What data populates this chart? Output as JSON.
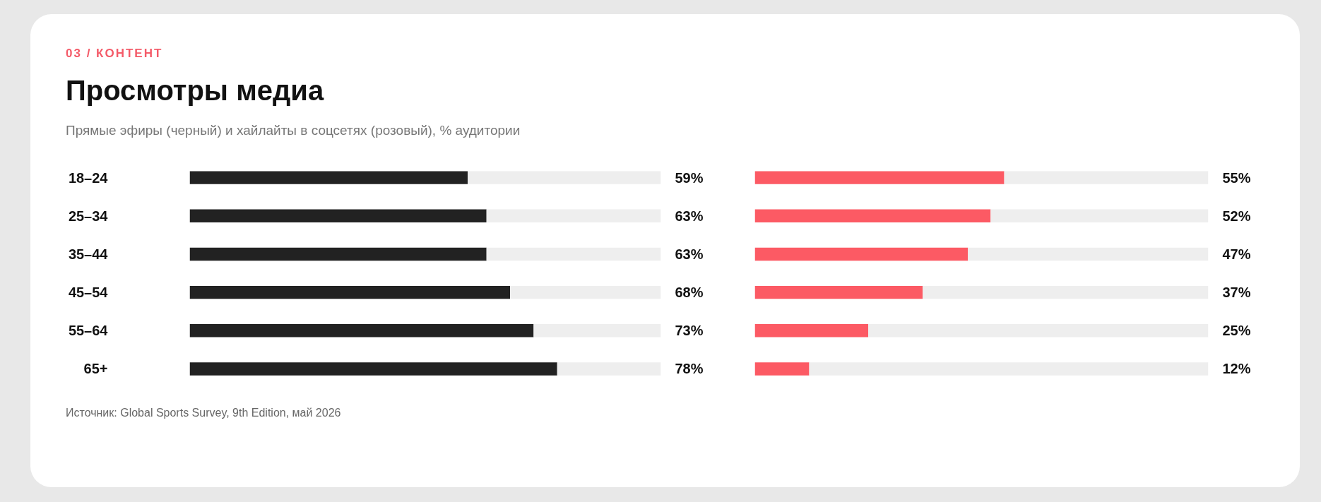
{
  "chart_data": [
    {
      "type": "bar",
      "orientation": "horizontal",
      "stacked": true,
      "title": "Просмотры медиа",
      "subtitle": "Прямые эфиры (черный) и хайлайты в соцсетях (розовый), % аудитории",
      "annotations": [
        "03 / КОНТЕНТ",
        "Источник: Global Sports Survey, 9th Edition, май 2026"
      ],
      "tick_labels": "y",
      "categories": [
        "18–24",
        "25–34",
        "35–44",
        "45–54",
        "55–64",
        "65+"
      ],
      "series": [
        {
          "color": "#222222",
          "values": [
            59,
            63,
            63,
            68,
            73,
            78
          ],
          "value_labels": [
            "59%",
            "63%",
            "63%",
            "68%",
            "73%",
            "78%"
          ]
        },
        {
          "color": "#eeeeee",
          "values": [
            41,
            37,
            37,
            32,
            27,
            22
          ]
        }
      ]
    },
    {
      "type": "bar",
      "orientation": "horizontal",
      "stacked": true,
      "tick_labels": false,
      "categories": [
        null,
        null,
        null,
        null,
        null,
        null
      ],
      "series": [
        {
          "color": "#fc5a64",
          "values": [
            55,
            52,
            47,
            37,
            25,
            12
          ],
          "value_labels": [
            "55%",
            "52%",
            "47%",
            "37%",
            "25%",
            "12%"
          ]
        },
        {
          "color": "#eeeeee",
          "values": [
            45,
            48,
            53,
            63,
            75,
            88
          ]
        }
      ]
    }
  ]
}
